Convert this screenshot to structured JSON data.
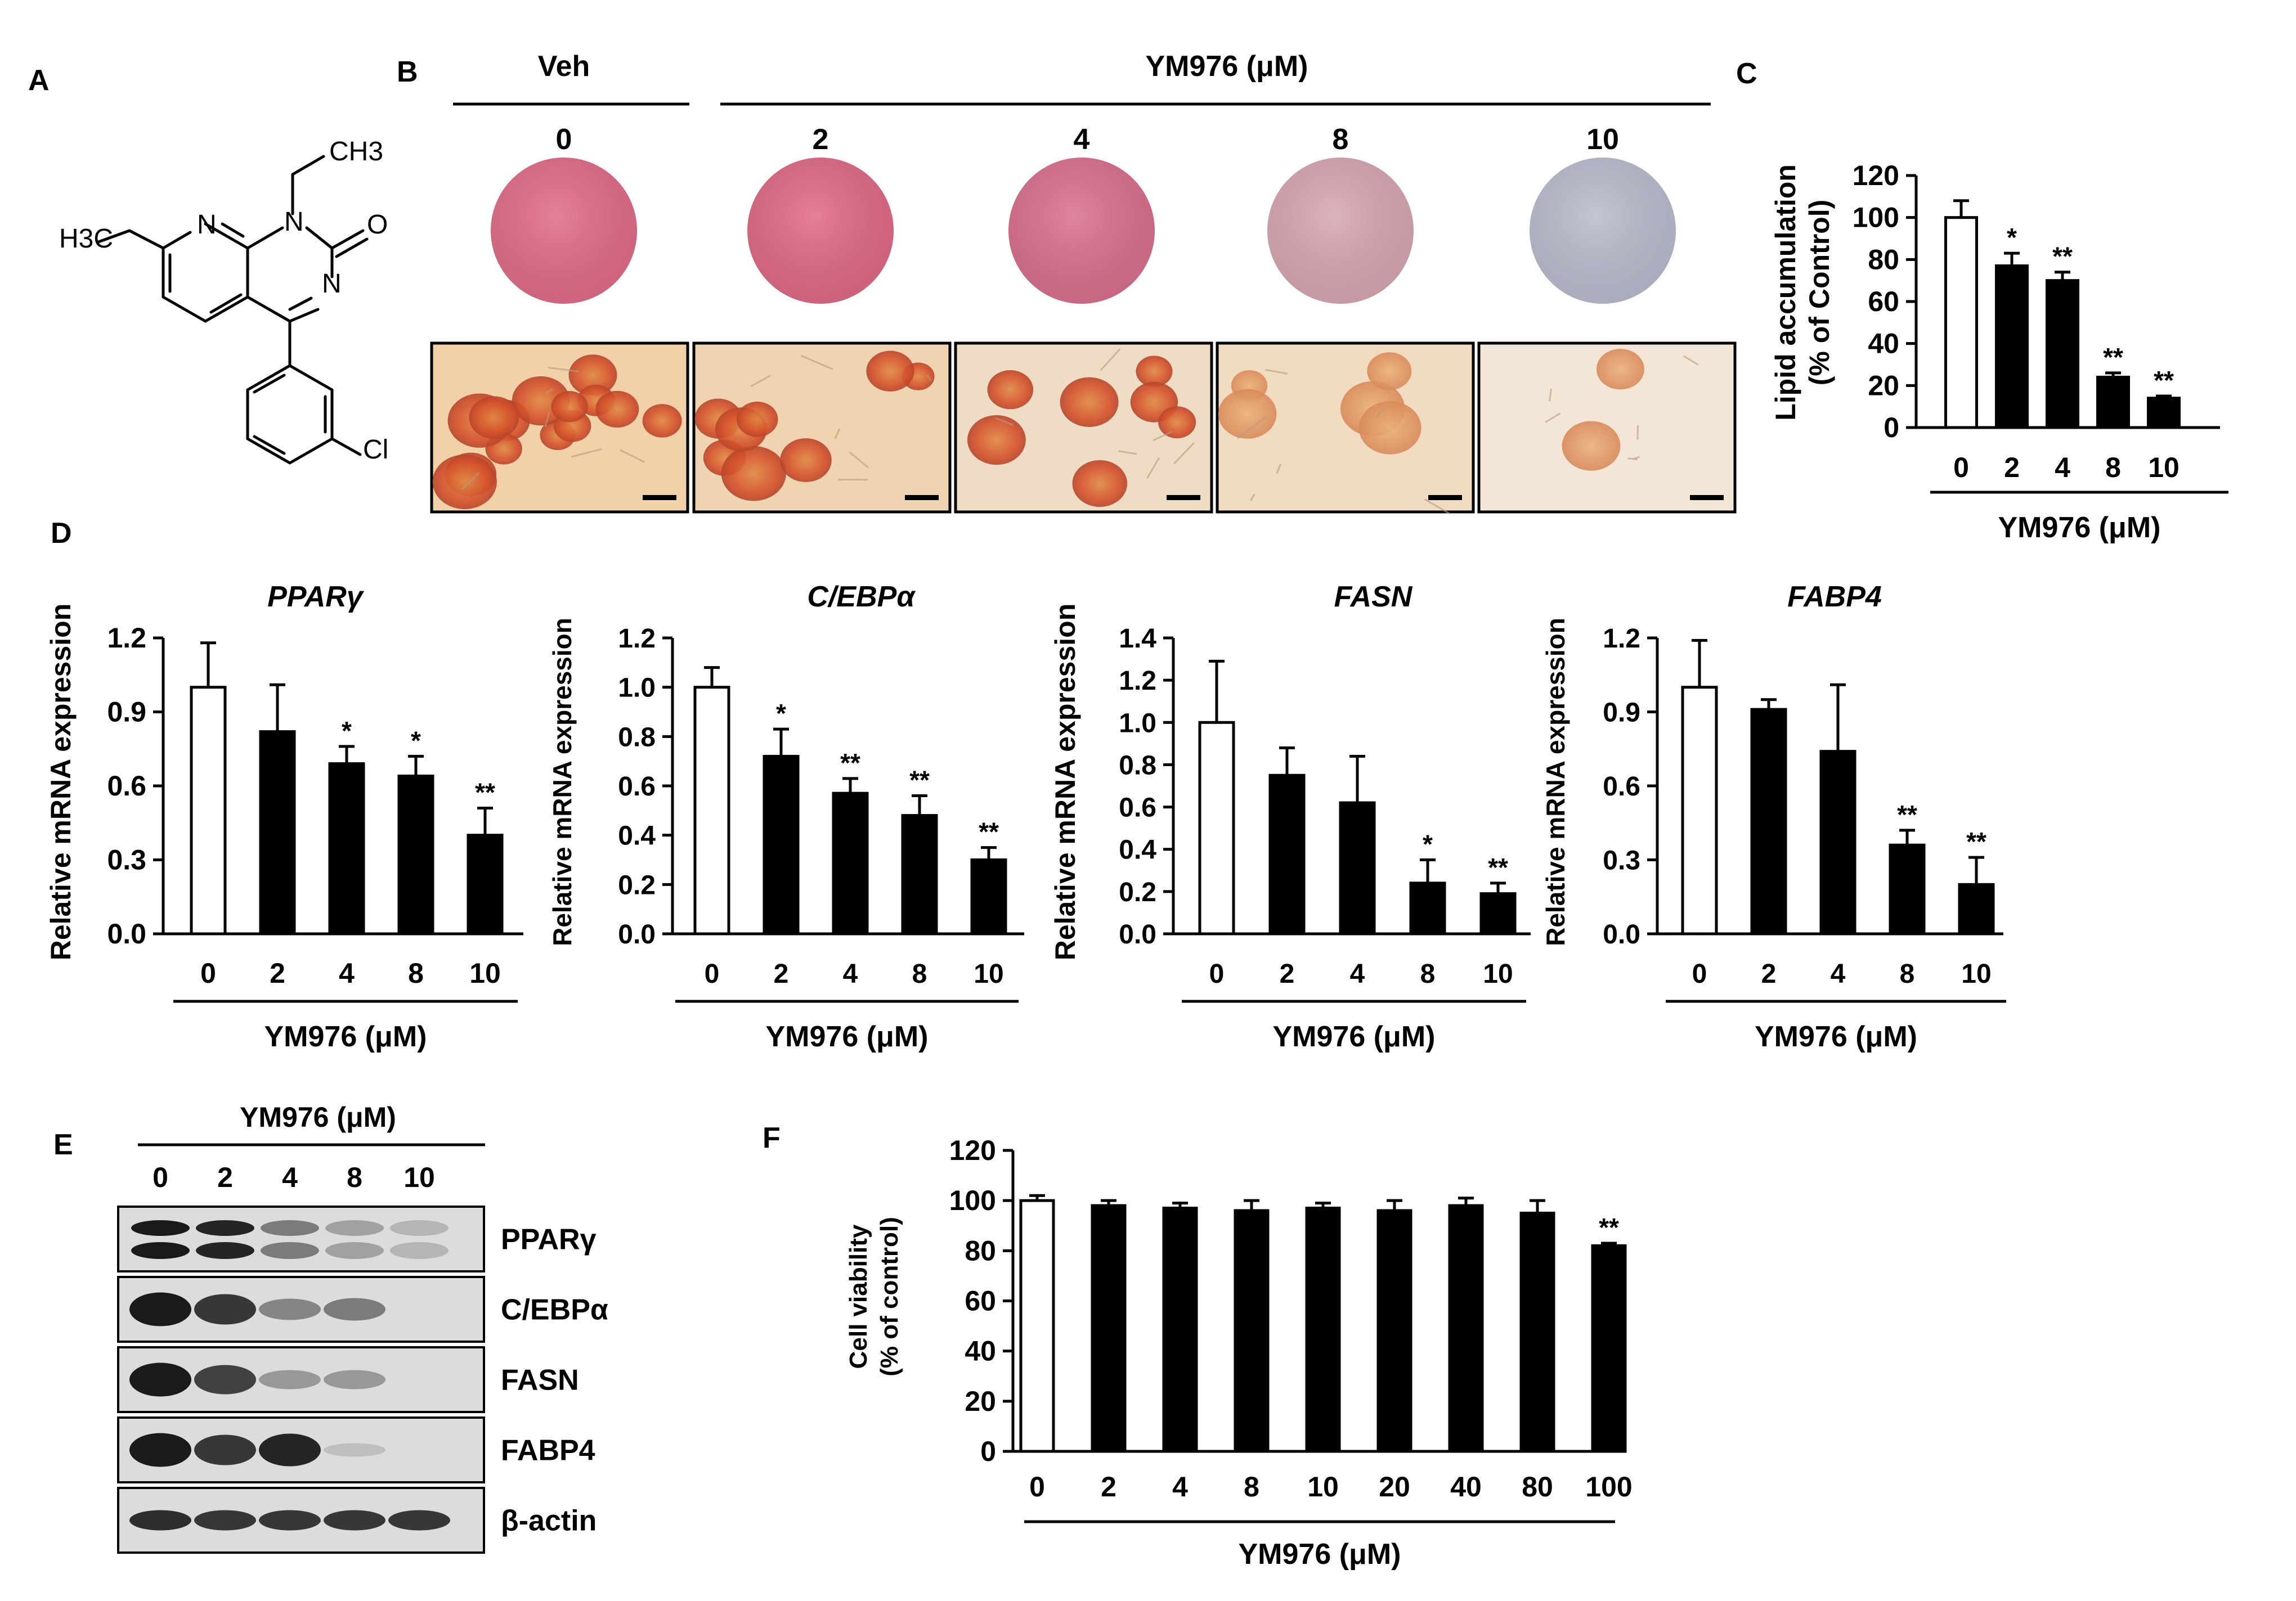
{
  "panel_letters": [
    "A",
    "B",
    "C",
    "D",
    "E",
    "F"
  ],
  "panel_A": {
    "atoms": {
      "ch3": "CH3",
      "h3c": "H3C",
      "n1": "N",
      "n2": "N",
      "n3": "N",
      "o": "O",
      "cl": "Cl"
    }
  },
  "panel_B": {
    "group_veh": "Veh",
    "group_ym": "YM976 (μM)",
    "doses": [
      "0",
      "2",
      "4",
      "8",
      "10"
    ],
    "well_colors": [
      "#e06c88",
      "#df6a86",
      "#d9708c",
      "#d7a6b1",
      "#b8bccd"
    ],
    "micro_bg": [
      "#f2d0a8",
      "#f0d4b2",
      "#efdcc4",
      "#f1dcc2",
      "#f3e6d6"
    ]
  },
  "panel_E": {
    "title": "YM976 (μM)",
    "lanes": [
      "0",
      "2",
      "4",
      "8",
      "10"
    ],
    "blots": [
      {
        "label": "PPARγ",
        "intensity": [
          1.0,
          0.95,
          0.5,
          0.3,
          0.2
        ],
        "doublet": true
      },
      {
        "label": "C/EBPα",
        "intensity": [
          1.0,
          0.85,
          0.45,
          0.5,
          0.0
        ],
        "doublet": false
      },
      {
        "label": "FASN",
        "intensity": [
          1.0,
          0.8,
          0.35,
          0.35,
          0.0
        ],
        "doublet": false
      },
      {
        "label": "FABP4",
        "intensity": [
          1.0,
          0.85,
          0.95,
          0.1,
          0.0
        ],
        "doublet": false
      },
      {
        "label": "β-actin",
        "intensity": [
          0.9,
          0.85,
          0.85,
          0.85,
          0.85
        ],
        "doublet": false
      }
    ]
  },
  "chart_data": [
    {
      "id": "C",
      "type": "bar",
      "title": "",
      "ylabel": "Lipid accumulation",
      "ylabel2": "(% of Control)",
      "xlabel": "YM976 (μM)",
      "categories": [
        "0",
        "2",
        "4",
        "8",
        "10"
      ],
      "values": [
        100,
        77,
        70,
        24,
        14
      ],
      "errors": [
        8,
        6,
        4,
        2,
        1
      ],
      "sig": [
        "",
        "*",
        "**",
        "**",
        "**"
      ],
      "ylim": [
        0,
        120
      ],
      "yticks": [
        "0",
        "20",
        "40",
        "60",
        "80",
        "100",
        "120"
      ],
      "ytick_values": [
        0,
        20,
        40,
        60,
        80,
        100,
        120
      ]
    },
    {
      "id": "D1",
      "type": "bar",
      "title": "PPARγ",
      "ylabel": "Relative mRNA expression",
      "xlabel": "YM976 (μM)",
      "categories": [
        "0",
        "2",
        "4",
        "8",
        "10"
      ],
      "values": [
        1.0,
        0.82,
        0.69,
        0.64,
        0.4
      ],
      "errors": [
        0.18,
        0.19,
        0.07,
        0.08,
        0.11
      ],
      "sig": [
        "",
        "",
        "*",
        "*",
        "**"
      ],
      "ylim": [
        0,
        1.2
      ],
      "yticks": [
        "0.0",
        "0.3",
        "0.6",
        "0.9",
        "1.2"
      ],
      "ytick_values": [
        0,
        0.3,
        0.6,
        0.9,
        1.2
      ]
    },
    {
      "id": "D2",
      "type": "bar",
      "title": "C/EBPα",
      "ylabel": "Relative mRNA expression",
      "xlabel": "YM976 (μM)",
      "categories": [
        "0",
        "2",
        "4",
        "8",
        "10"
      ],
      "values": [
        1.0,
        0.72,
        0.57,
        0.48,
        0.3
      ],
      "errors": [
        0.08,
        0.11,
        0.06,
        0.08,
        0.05
      ],
      "sig": [
        "",
        "*",
        "**",
        "**",
        "**"
      ],
      "ylim": [
        0,
        1.2
      ],
      "yticks": [
        "0.0",
        "0.2",
        "0.4",
        "0.6",
        "0.8",
        "1.0",
        "1.2"
      ],
      "ytick_values": [
        0,
        0.2,
        0.4,
        0.6,
        0.8,
        1.0,
        1.2
      ]
    },
    {
      "id": "D3",
      "type": "bar",
      "title": "FASN",
      "ylabel": "Relative mRNA expression",
      "xlabel": "YM976 (μM)",
      "categories": [
        "0",
        "2",
        "4",
        "8",
        "10"
      ],
      "values": [
        1.0,
        0.75,
        0.62,
        0.24,
        0.19
      ],
      "errors": [
        0.29,
        0.13,
        0.22,
        0.11,
        0.05
      ],
      "sig": [
        "",
        "",
        "",
        "*",
        "**"
      ],
      "ylim": [
        0,
        1.4
      ],
      "yticks": [
        "0.0",
        "0.2",
        "0.4",
        "0.6",
        "0.8",
        "1.0",
        "1.2",
        "1.4"
      ],
      "ytick_values": [
        0,
        0.2,
        0.4,
        0.6,
        0.8,
        1.0,
        1.2,
        1.4
      ]
    },
    {
      "id": "D4",
      "type": "bar",
      "title": "FABP4",
      "ylabel": "Relative mRNA expression",
      "xlabel": "YM976 (μM)",
      "categories": [
        "0",
        "2",
        "4",
        "8",
        "10"
      ],
      "values": [
        1.0,
        0.91,
        0.74,
        0.36,
        0.2
      ],
      "errors": [
        0.19,
        0.04,
        0.27,
        0.06,
        0.11
      ],
      "sig": [
        "",
        "",
        "",
        "**",
        "**"
      ],
      "ylim": [
        0,
        1.2
      ],
      "yticks": [
        "0.0",
        "0.3",
        "0.6",
        "0.9",
        "1.2"
      ],
      "ytick_values": [
        0,
        0.3,
        0.6,
        0.9,
        1.2
      ]
    },
    {
      "id": "F",
      "type": "bar",
      "title": "",
      "ylabel": "Cell viability",
      "ylabel2": "(% of control)",
      "xlabel": "YM976 (μM)",
      "categories": [
        "0",
        "2",
        "4",
        "8",
        "10",
        "20",
        "40",
        "80",
        "100"
      ],
      "values": [
        100,
        98,
        97,
        96,
        97,
        96,
        98,
        95,
        82
      ],
      "errors": [
        2,
        2,
        2,
        4,
        2,
        4,
        3,
        5,
        1
      ],
      "sig": [
        "",
        "",
        "",
        "",
        "",
        "",
        "",
        "",
        "**"
      ],
      "ylim": [
        0,
        120
      ],
      "yticks": [
        "0",
        "20",
        "40",
        "60",
        "80",
        "100",
        "120"
      ],
      "ytick_values": [
        0,
        20,
        40,
        60,
        80,
        100,
        120
      ]
    }
  ]
}
